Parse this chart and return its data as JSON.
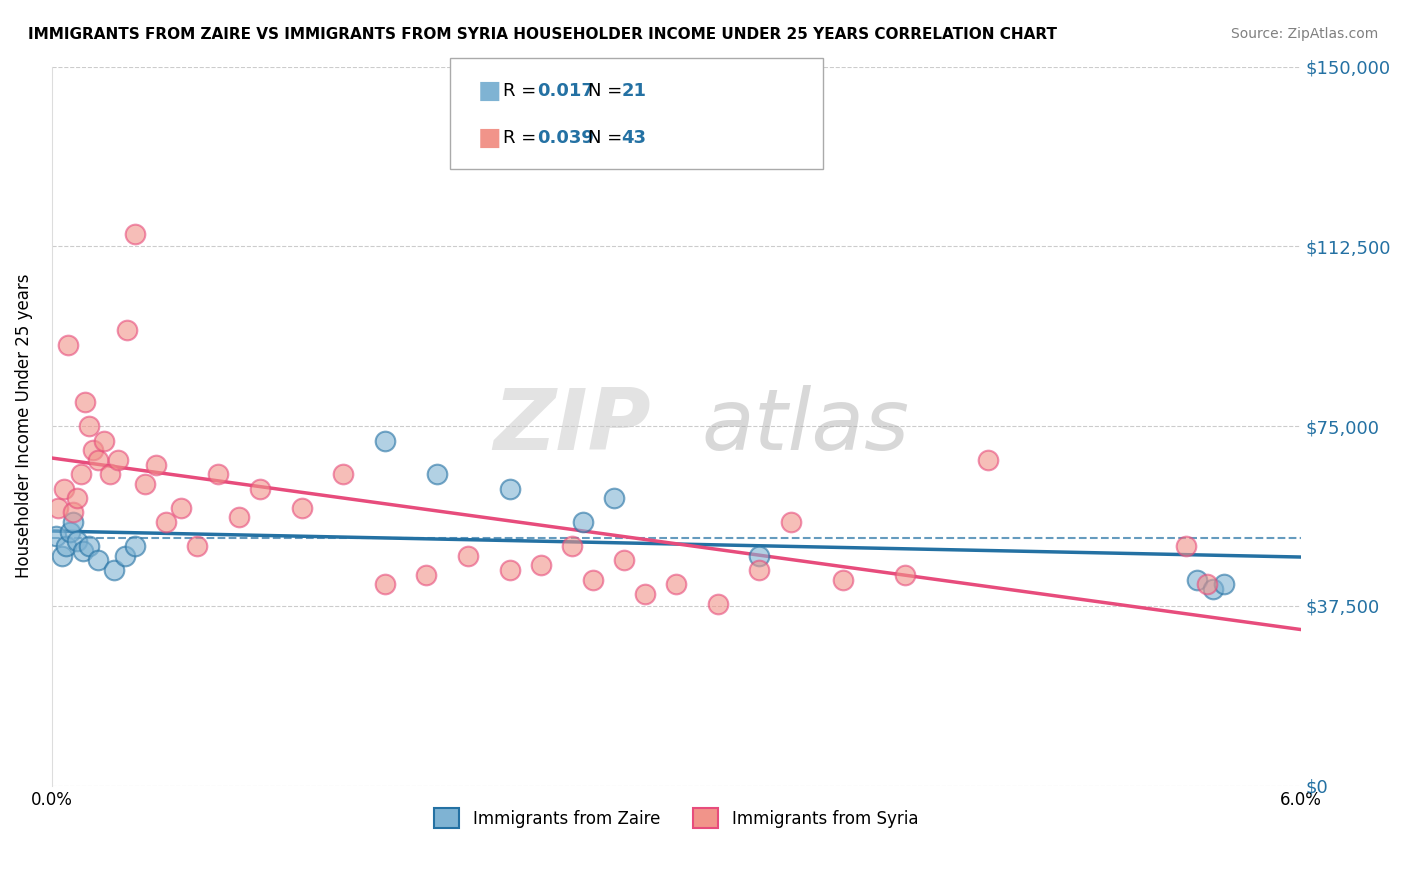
{
  "title": "IMMIGRANTS FROM ZAIRE VS IMMIGRANTS FROM SYRIA HOUSEHOLDER INCOME UNDER 25 YEARS CORRELATION CHART",
  "source": "Source: ZipAtlas.com",
  "ylabel": "Householder Income Under 25 years",
  "ytick_labels": [
    "$0",
    "$37,500",
    "$75,000",
    "$112,500",
    "$150,000"
  ],
  "ytick_values": [
    0,
    37500,
    75000,
    112500,
    150000
  ],
  "xmin": 0.0,
  "xmax": 6.0,
  "ymin": 0,
  "ymax": 150000,
  "legend_label_zaire": "Immigrants from Zaire",
  "legend_label_syria": "Immigrants from Syria",
  "color_zaire": "#7FB3D3",
  "color_syria": "#F1948A",
  "color_trendline_zaire": "#2471A3",
  "color_trendline_syria": "#E74C7C",
  "watermark_zip": "ZIP",
  "watermark_atlas": "atlas",
  "background_color": "#FFFFFF",
  "grid_color": "#CCCCCC",
  "zaire_x": [
    0.02,
    0.05,
    0.07,
    0.09,
    0.1,
    0.12,
    0.15,
    0.18,
    0.22,
    0.3,
    0.35,
    0.4,
    1.6,
    1.85,
    2.2,
    2.55,
    2.7,
    3.4,
    5.5,
    5.58,
    5.63
  ],
  "zaire_y": [
    52000,
    48000,
    50000,
    53000,
    55000,
    51000,
    49000,
    50000,
    47000,
    45000,
    48000,
    50000,
    72000,
    65000,
    62000,
    55000,
    60000,
    48000,
    43000,
    41000,
    42000
  ],
  "syria_x": [
    0.03,
    0.06,
    0.08,
    0.1,
    0.12,
    0.14,
    0.16,
    0.18,
    0.2,
    0.22,
    0.25,
    0.28,
    0.32,
    0.36,
    0.4,
    0.45,
    0.5,
    0.55,
    0.62,
    0.7,
    0.8,
    0.9,
    1.0,
    1.2,
    1.4,
    1.6,
    1.8,
    2.0,
    2.2,
    2.35,
    2.5,
    2.6,
    2.75,
    2.85,
    3.0,
    3.2,
    3.4,
    3.55,
    3.8,
    4.1,
    4.5,
    5.45,
    5.55
  ],
  "syria_y": [
    58000,
    62000,
    92000,
    57000,
    60000,
    65000,
    80000,
    75000,
    70000,
    68000,
    72000,
    65000,
    68000,
    95000,
    115000,
    63000,
    67000,
    55000,
    58000,
    50000,
    65000,
    56000,
    62000,
    58000,
    65000,
    42000,
    44000,
    48000,
    45000,
    46000,
    50000,
    43000,
    47000,
    40000,
    42000,
    38000,
    45000,
    55000,
    43000,
    44000,
    68000,
    50000,
    42000
  ]
}
